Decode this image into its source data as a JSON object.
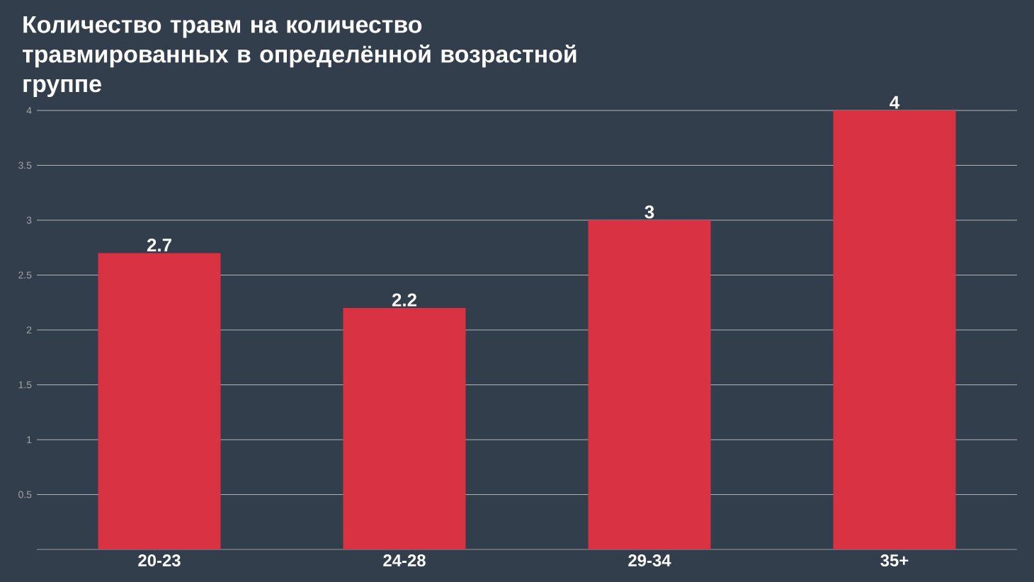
{
  "chart_data": {
    "type": "bar",
    "title": "Количество травм на количество травмированных в определённой возрастной группе",
    "categories": [
      "20-23",
      "24-28",
      "29-34",
      "35+"
    ],
    "values": [
      2.7,
      2.2,
      3,
      4
    ],
    "color": "#d93343",
    "ylim": [
      0,
      4
    ],
    "yticks": [
      0.5,
      1,
      1.5,
      2,
      2.5,
      3,
      3.5,
      4
    ],
    "grid": "y",
    "data_labels": true
  }
}
